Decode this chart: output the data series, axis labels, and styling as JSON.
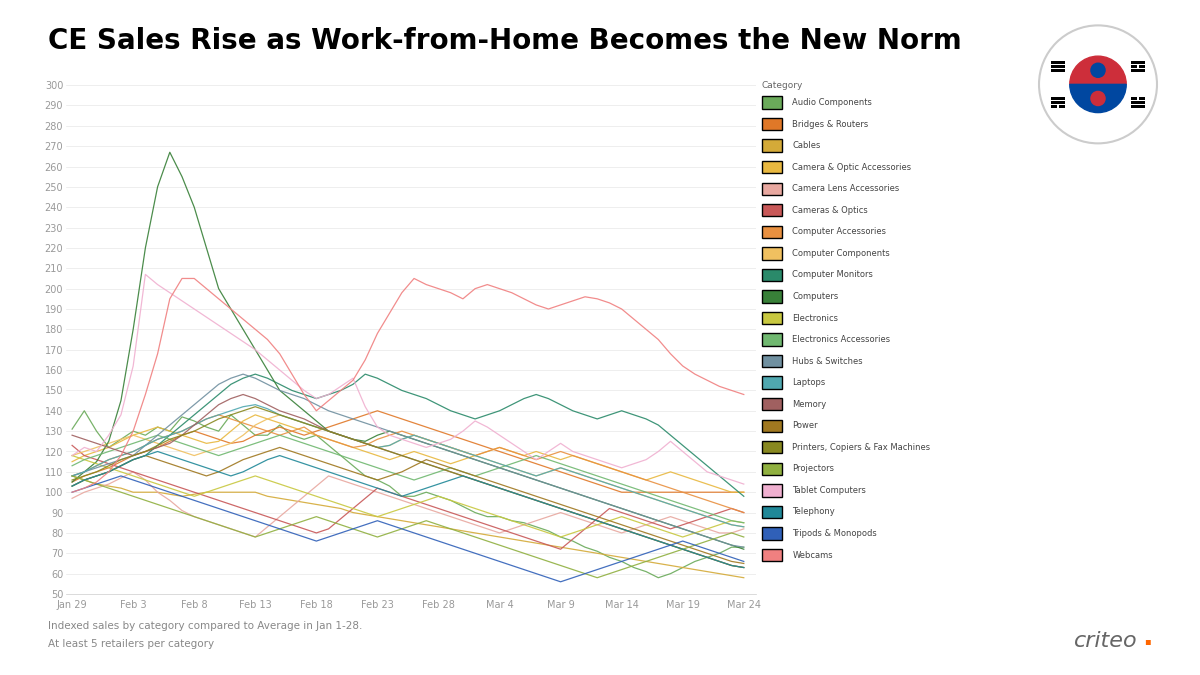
{
  "title": "CE Sales Rise as Work-from-Home Becomes the New Norm",
  "footnote1": "Indexed sales by category compared to Average in Jan 1-28.",
  "footnote2": "At least 5 retailers per category",
  "x_labels": [
    "Jan 29",
    "Feb 3",
    "Feb 8",
    "Feb 13",
    "Feb 18",
    "Feb 23",
    "Feb 28",
    "Mar 4",
    "Mar 9",
    "Mar 14",
    "Mar 19",
    "Mar 24"
  ],
  "ylim": [
    50,
    302
  ],
  "categories": [
    "Audio Components",
    "Bridges & Routers",
    "Cables",
    "Camera & Optic Accessories",
    "Camera Lens Accessories",
    "Cameras & Optics",
    "Computer Accessories",
    "Computer Components",
    "Computer Monitors",
    "Computers",
    "Electronics",
    "Electronics Accessories",
    "Hubs & Switches",
    "Laptops",
    "Memory",
    "Power",
    "Printers, Copiers & Fax Machines",
    "Projectors",
    "Tablet Computers",
    "Telephony",
    "Tripods & Monopods",
    "Webcams"
  ],
  "colors": [
    "#6aaa5a",
    "#e07828",
    "#d4aa38",
    "#e8b840",
    "#e8a8a0",
    "#c85858",
    "#e89040",
    "#f0c060",
    "#2a8a6a",
    "#388038",
    "#c8c840",
    "#70b870",
    "#7090a0",
    "#50a8b0",
    "#a06060",
    "#a07820",
    "#888820",
    "#90b040",
    "#f0b0d0",
    "#208898",
    "#3060b8",
    "#f08080"
  ],
  "series": {
    "Audio Components": [
      131,
      140,
      130,
      122,
      126,
      130,
      128,
      132,
      130,
      137,
      135,
      132,
      130,
      138,
      133,
      128,
      128,
      133,
      128,
      126,
      128,
      123,
      118,
      113,
      108,
      106,
      103,
      98,
      98,
      100,
      98,
      96,
      93,
      90,
      88,
      88,
      86,
      85,
      83,
      81,
      78,
      76,
      73,
      71,
      68,
      66,
      63,
      61,
      58,
      60,
      63,
      66,
      68,
      70,
      73,
      73
    ],
    "Bridges & Routers": [
      105,
      108,
      110,
      112,
      115,
      118,
      120,
      122,
      125,
      128,
      130,
      128,
      126,
      124,
      125,
      128,
      130,
      132,
      130,
      128,
      130,
      132,
      134,
      136,
      138,
      140,
      138,
      136,
      134,
      132,
      130,
      128,
      126,
      124,
      122,
      120,
      118,
      116,
      114,
      112,
      110,
      108,
      106,
      104,
      102,
      100,
      100,
      100,
      100,
      100,
      100,
      100,
      100,
      100,
      100,
      100
    ],
    "Cables": [
      108,
      106,
      104,
      103,
      102,
      100,
      100,
      100,
      99,
      98,
      99,
      100,
      100,
      100,
      100,
      100,
      98,
      97,
      96,
      95,
      94,
      93,
      92,
      90,
      89,
      88,
      87,
      86,
      85,
      84,
      83,
      82,
      81,
      80,
      79,
      78,
      77,
      76,
      75,
      74,
      73,
      72,
      71,
      70,
      69,
      68,
      67,
      66,
      65,
      64,
      63,
      62,
      61,
      60,
      59,
      58
    ],
    "Camera & Optic Accessories": [
      115,
      118,
      120,
      122,
      125,
      128,
      130,
      132,
      130,
      128,
      126,
      124,
      125,
      130,
      135,
      138,
      136,
      134,
      132,
      130,
      128,
      126,
      124,
      122,
      120,
      118,
      116,
      118,
      120,
      118,
      116,
      114,
      116,
      118,
      120,
      122,
      120,
      118,
      120,
      118,
      116,
      118,
      116,
      114,
      112,
      110,
      108,
      106,
      108,
      110,
      108,
      106,
      104,
      102,
      100,
      100
    ],
    "Camera Lens Accessories": [
      97,
      100,
      102,
      104,
      107,
      110,
      106,
      100,
      96,
      91,
      88,
      86,
      84,
      82,
      80,
      78,
      83,
      88,
      93,
      98,
      103,
      108,
      106,
      104,
      102,
      100,
      98,
      96,
      94,
      92,
      90,
      88,
      86,
      84,
      82,
      80,
      82,
      84,
      86,
      88,
      90,
      88,
      86,
      84,
      82,
      80,
      82,
      84,
      86,
      88,
      86,
      84,
      82,
      80,
      80,
      82
    ],
    "Cameras & Optics": [
      123,
      118,
      116,
      114,
      112,
      110,
      108,
      106,
      104,
      102,
      100,
      98,
      96,
      94,
      92,
      90,
      88,
      86,
      84,
      82,
      80,
      82,
      87,
      92,
      97,
      102,
      100,
      98,
      96,
      94,
      92,
      90,
      88,
      86,
      84,
      82,
      80,
      78,
      76,
      74,
      72,
      77,
      82,
      87,
      92,
      90,
      88,
      86,
      84,
      82,
      84,
      86,
      88,
      90,
      92,
      90
    ],
    "Computer Accessories": [
      108,
      110,
      113,
      116,
      118,
      120,
      123,
      126,
      128,
      130,
      133,
      136,
      138,
      136,
      134,
      132,
      130,
      128,
      130,
      132,
      128,
      126,
      124,
      122,
      123,
      126,
      128,
      130,
      128,
      126,
      124,
      122,
      120,
      118,
      120,
      122,
      120,
      118,
      116,
      118,
      120,
      118,
      116,
      114,
      112,
      110,
      108,
      106,
      104,
      102,
      100,
      98,
      96,
      94,
      92,
      90
    ],
    "Computer Components": [
      118,
      120,
      122,
      124,
      126,
      128,
      126,
      124,
      122,
      120,
      118,
      120,
      122,
      124,
      128,
      133,
      136,
      138,
      136,
      134,
      132,
      130,
      128,
      126,
      124,
      122,
      123,
      126,
      128,
      126,
      124,
      122,
      120,
      118,
      116,
      114,
      112,
      110,
      108,
      110,
      112,
      110,
      108,
      106,
      104,
      102,
      100,
      98,
      96,
      94,
      92,
      90,
      88,
      86,
      84,
      83
    ],
    "Computer Monitors": [
      103,
      106,
      108,
      110,
      113,
      116,
      118,
      123,
      128,
      133,
      138,
      143,
      148,
      153,
      156,
      158,
      156,
      153,
      150,
      148,
      146,
      148,
      150,
      153,
      158,
      156,
      153,
      150,
      148,
      146,
      143,
      140,
      138,
      136,
      138,
      140,
      143,
      146,
      148,
      146,
      143,
      140,
      138,
      136,
      138,
      140,
      138,
      136,
      133,
      128,
      123,
      118,
      113,
      108,
      103,
      98
    ],
    "Computers": [
      105,
      110,
      115,
      125,
      145,
      180,
      220,
      250,
      267,
      255,
      240,
      220,
      200,
      190,
      180,
      170,
      160,
      150,
      145,
      140,
      135,
      130,
      128,
      126,
      125,
      128,
      130,
      128,
      126,
      124,
      122,
      120,
      118,
      116,
      114,
      112,
      110,
      108,
      106,
      104,
      102,
      100,
      98,
      96,
      94,
      92,
      90,
      88,
      86,
      84,
      82,
      80,
      78,
      76,
      74,
      72
    ],
    "Electronics": [
      118,
      116,
      114,
      112,
      110,
      108,
      106,
      104,
      102,
      100,
      98,
      100,
      102,
      104,
      106,
      108,
      106,
      104,
      102,
      100,
      98,
      96,
      94,
      92,
      90,
      88,
      90,
      92,
      94,
      96,
      98,
      96,
      94,
      92,
      90,
      88,
      86,
      84,
      82,
      80,
      78,
      80,
      82,
      84,
      86,
      88,
      86,
      84,
      82,
      80,
      78,
      80,
      82,
      84,
      86,
      85
    ],
    "Electronics Accessories": [
      113,
      116,
      118,
      120,
      122,
      124,
      126,
      128,
      126,
      124,
      122,
      120,
      118,
      120,
      122,
      124,
      126,
      128,
      126,
      124,
      122,
      120,
      118,
      116,
      114,
      112,
      110,
      108,
      106,
      108,
      110,
      112,
      110,
      108,
      110,
      112,
      114,
      116,
      118,
      116,
      114,
      112,
      110,
      108,
      106,
      104,
      102,
      100,
      98,
      96,
      94,
      92,
      90,
      88,
      86,
      85
    ],
    "Hubs & Switches": [
      108,
      110,
      112,
      114,
      116,
      118,
      123,
      128,
      133,
      138,
      143,
      148,
      153,
      156,
      158,
      156,
      153,
      150,
      148,
      146,
      143,
      140,
      138,
      136,
      134,
      132,
      130,
      128,
      126,
      124,
      122,
      120,
      118,
      116,
      114,
      112,
      110,
      108,
      106,
      104,
      102,
      100,
      98,
      96,
      94,
      92,
      90,
      88,
      86,
      84,
      82,
      80,
      78,
      76,
      74,
      73
    ],
    "Laptops": [
      108,
      110,
      113,
      116,
      118,
      120,
      123,
      126,
      128,
      130,
      133,
      136,
      138,
      140,
      142,
      143,
      141,
      138,
      136,
      134,
      132,
      130,
      128,
      126,
      124,
      122,
      123,
      126,
      128,
      126,
      124,
      122,
      120,
      118,
      116,
      114,
      112,
      110,
      108,
      110,
      112,
      110,
      108,
      106,
      104,
      102,
      100,
      98,
      96,
      94,
      92,
      90,
      88,
      86,
      84,
      83
    ],
    "Memory": [
      128,
      126,
      124,
      122,
      120,
      118,
      120,
      122,
      124,
      128,
      133,
      138,
      143,
      146,
      148,
      146,
      143,
      140,
      138,
      136,
      133,
      130,
      128,
      126,
      124,
      122,
      120,
      118,
      116,
      114,
      112,
      110,
      108,
      106,
      104,
      102,
      100,
      98,
      96,
      94,
      92,
      90,
      88,
      86,
      84,
      82,
      80,
      78,
      76,
      74,
      72,
      70,
      68,
      66,
      64,
      63
    ],
    "Power": [
      103,
      106,
      108,
      110,
      113,
      116,
      118,
      116,
      114,
      112,
      110,
      108,
      110,
      113,
      116,
      118,
      120,
      122,
      120,
      118,
      116,
      114,
      112,
      110,
      108,
      106,
      108,
      110,
      113,
      116,
      114,
      112,
      110,
      108,
      106,
      104,
      102,
      100,
      98,
      96,
      94,
      92,
      90,
      88,
      86,
      84,
      82,
      80,
      78,
      76,
      74,
      72,
      70,
      68,
      66,
      65
    ],
    "Printers, Copiers & Fax Machines": [
      106,
      108,
      110,
      113,
      116,
      118,
      120,
      123,
      126,
      128,
      130,
      133,
      136,
      138,
      140,
      142,
      140,
      138,
      136,
      134,
      132,
      130,
      128,
      126,
      124,
      122,
      120,
      118,
      116,
      114,
      112,
      110,
      108,
      106,
      104,
      102,
      100,
      98,
      96,
      94,
      92,
      90,
      88,
      86,
      84,
      82,
      80,
      78,
      76,
      74,
      72,
      70,
      68,
      66,
      64,
      63
    ],
    "Projectors": [
      108,
      106,
      104,
      102,
      100,
      98,
      96,
      94,
      92,
      90,
      88,
      86,
      84,
      82,
      80,
      78,
      80,
      82,
      84,
      86,
      88,
      86,
      84,
      82,
      80,
      78,
      80,
      82,
      84,
      86,
      84,
      82,
      80,
      78,
      76,
      74,
      72,
      70,
      68,
      66,
      64,
      62,
      60,
      58,
      60,
      62,
      64,
      66,
      68,
      70,
      72,
      74,
      76,
      78,
      80,
      78
    ],
    "Tablet Computers": [
      118,
      122,
      120,
      128,
      138,
      162,
      207,
      202,
      198,
      194,
      190,
      186,
      182,
      178,
      174,
      170,
      165,
      160,
      155,
      150,
      146,
      148,
      152,
      156,
      142,
      132,
      128,
      126,
      124,
      122,
      124,
      126,
      130,
      135,
      132,
      128,
      124,
      120,
      116,
      120,
      124,
      120,
      118,
      116,
      114,
      112,
      114,
      116,
      120,
      125,
      120,
      115,
      110,
      108,
      106,
      104
    ],
    "Telephony": [
      103,
      106,
      108,
      110,
      113,
      116,
      118,
      120,
      118,
      116,
      114,
      112,
      110,
      108,
      110,
      113,
      116,
      118,
      116,
      114,
      112,
      110,
      108,
      106,
      104,
      102,
      100,
      98,
      100,
      102,
      104,
      106,
      108,
      106,
      104,
      102,
      100,
      98,
      96,
      94,
      92,
      90,
      88,
      86,
      84,
      82,
      80,
      78,
      76,
      74,
      72,
      70,
      68,
      66,
      64,
      63
    ],
    "Tripods & Monopods": [
      100,
      102,
      104,
      106,
      108,
      106,
      104,
      102,
      100,
      98,
      96,
      94,
      92,
      90,
      88,
      86,
      84,
      82,
      80,
      78,
      76,
      78,
      80,
      82,
      84,
      86,
      84,
      82,
      80,
      78,
      76,
      74,
      72,
      70,
      68,
      66,
      64,
      62,
      60,
      58,
      56,
      58,
      60,
      62,
      64,
      66,
      68,
      70,
      72,
      74,
      76,
      74,
      72,
      70,
      68,
      66
    ],
    "Webcams": [
      100,
      102,
      105,
      110,
      118,
      130,
      148,
      168,
      195,
      205,
      205,
      200,
      195,
      190,
      185,
      180,
      175,
      168,
      158,
      148,
      140,
      145,
      150,
      155,
      165,
      178,
      188,
      198,
      205,
      202,
      200,
      198,
      195,
      200,
      202,
      200,
      198,
      195,
      192,
      190,
      192,
      194,
      196,
      195,
      193,
      190,
      185,
      180,
      175,
      168,
      162,
      158,
      155,
      152,
      150,
      148
    ]
  }
}
